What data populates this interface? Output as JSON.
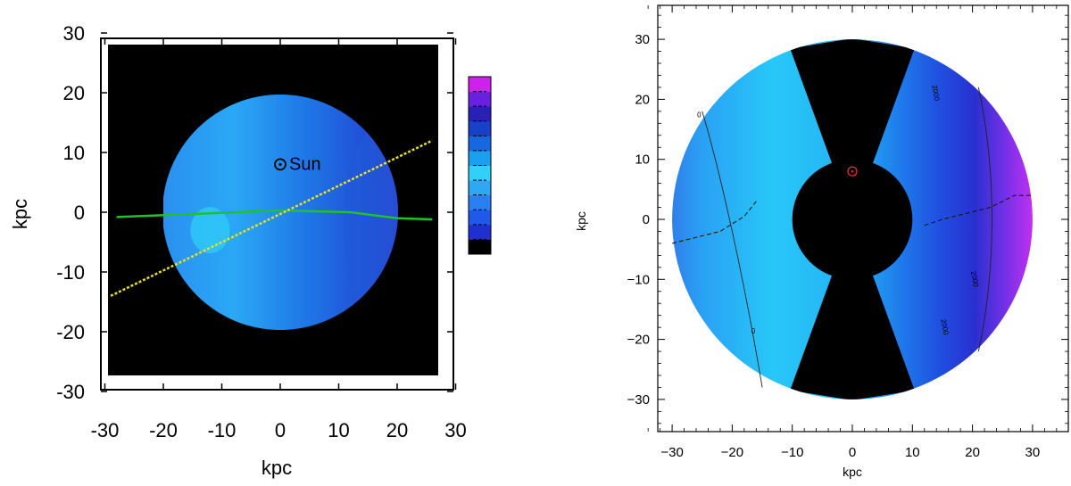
{
  "chart_data": [
    {
      "type": "heatmap",
      "title": "",
      "xlabel": "kpc",
      "ylabel": "kpc",
      "xlim": [
        -30,
        30
      ],
      "ylim": [
        -30,
        30
      ],
      "x_ticks": [
        "-30",
        "-20",
        "-10",
        "0",
        "10",
        "20",
        "30"
      ],
      "y_ticks": [
        "30",
        "20",
        "10",
        "0",
        "-10",
        "-20",
        "-30"
      ],
      "x_tick_values": [
        -30,
        -20,
        -10,
        0,
        10,
        20,
        30
      ],
      "y_tick_values": [
        30,
        20,
        10,
        0,
        -10,
        -20,
        -30
      ],
      "disk_radius": 20,
      "background_color": "#000000",
      "sun": {
        "x": 0,
        "y": 8,
        "label": "Sun"
      },
      "green_line": [
        [
          -28,
          -0.8
        ],
        [
          -15,
          -0.3
        ],
        [
          0,
          0.3
        ],
        [
          12,
          0
        ],
        [
          20,
          -1
        ],
        [
          26,
          -1.2
        ]
      ],
      "yellow_line": [
        [
          -29,
          -14
        ],
        [
          26,
          12
        ]
      ],
      "line_colors": {
        "green": "#22c02a",
        "yellow": "#e8e020"
      },
      "colorbar_colors": [
        "#000000",
        "#2030d0",
        "#2058e8",
        "#2a80f0",
        "#2fa8f4",
        "#30d0f8",
        "#1aa0f0",
        "#1668e0",
        "#1840c8",
        "#2a20b8",
        "#6a20e0",
        "#d020f0"
      ]
    },
    {
      "type": "heatmap",
      "title": "",
      "xlabel": "kpc",
      "ylabel": "kpc",
      "xlim": [
        -35,
        35
      ],
      "ylim": [
        -35,
        35
      ],
      "x_ticks": [
        "−30",
        "−20",
        "−10",
        "0",
        "10",
        "20",
        "30"
      ],
      "y_ticks": [
        "30",
        "20",
        "10",
        "0",
        "−10",
        "−20",
        "−30"
      ],
      "x_tick_values": [
        -30,
        -20,
        -10,
        0,
        10,
        20,
        30
      ],
      "y_tick_values": [
        30,
        20,
        10,
        0,
        -10,
        -20,
        -30
      ],
      "disk_radius": 30,
      "inner_hole_radius": 10,
      "masked_wedges_deg": 20,
      "sun": {
        "x": 0,
        "y": 8
      },
      "contour_labels": [
        "0",
        "0",
        "2000",
        "2000",
        "2000"
      ],
      "colors": {
        "mask": "#000000",
        "sun_marker": "#e03030",
        "low": "#2f7fe8",
        "mid": "#27c8f8",
        "high": "#b030f0"
      }
    }
  ]
}
